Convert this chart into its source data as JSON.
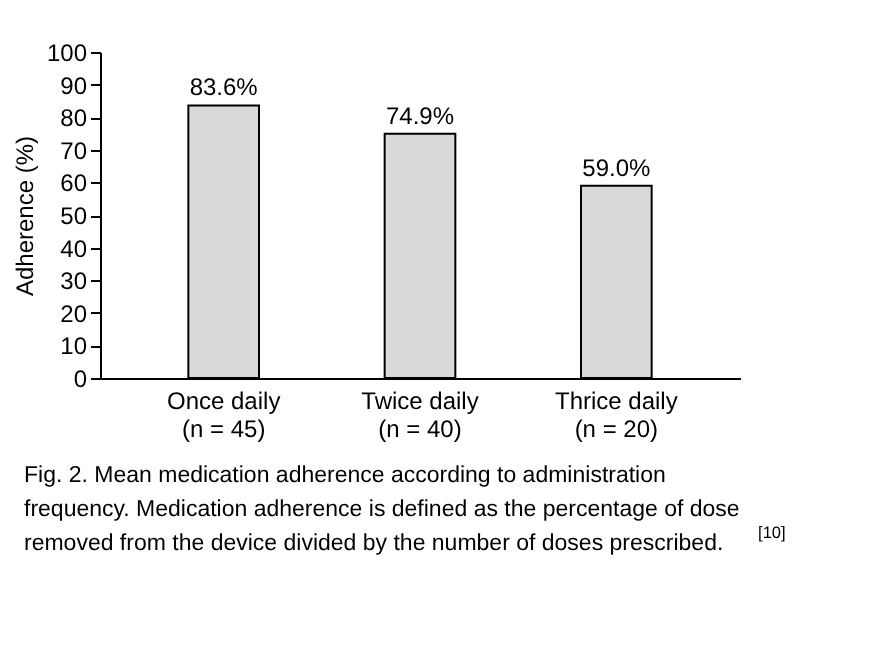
{
  "chart_data": {
    "type": "bar",
    "categories": [
      "Once daily\n(n = 45)",
      "Twice daily\n(n = 40)",
      "Thrice daily\n(n = 20)"
    ],
    "values": [
      83.6,
      74.9,
      59.0
    ],
    "value_labels": [
      "83.6%",
      "74.9%",
      "59.0%"
    ],
    "color": "#d9d9d9",
    "ylabel": "Adherence (%)",
    "ylim": [
      0,
      100
    ],
    "yticks": [
      0,
      10,
      20,
      30,
      40,
      50,
      60,
      70,
      80,
      90,
      100
    ],
    "grid": false,
    "annotations": [
      "Fig. 2. Mean medication adherence according to administration frequency. Medication adherence is defined as the percentage of dose removed from the device divided by the number of doses prescribed.$^{[10]}$"
    ]
  }
}
